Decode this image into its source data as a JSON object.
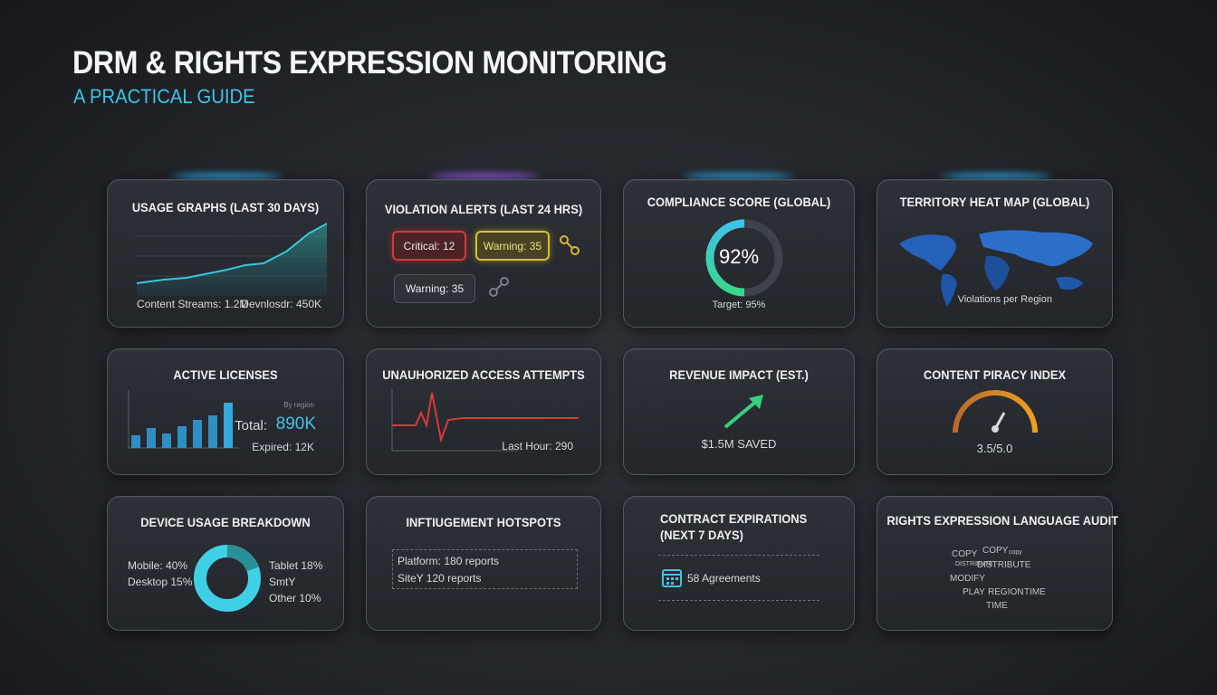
{
  "header": {
    "title": "DRM & RIGHTS EXPRESSION MONITORING",
    "subtitle": "A PRACTICAL GUIDE"
  },
  "cards": [
    {
      "title": "USAGE GRAPHS (LAST 30 DAYS)",
      "items": [
        "Content Streams: 1.2M",
        "Devnlosdr: 450K"
      ]
    },
    {
      "title": "VIOLATION ALERTS (LAST 24 HRS)",
      "items": [
        "Critical: 12",
        "Warning: 35",
        "Warning: 35"
      ]
    },
    {
      "title": "COMPLIANCE SCORE (GLOBAL)",
      "items": [
        "92%",
        "Target: 95%"
      ]
    },
    {
      "title": "TERRITORY HEAT MAP (GLOBAL)",
      "items": [
        "Violations per Region"
      ]
    },
    {
      "title": "ACTIVE LICENSES",
      "items": [
        "By region",
        "Total:",
        "890K",
        "Expired: 12K"
      ]
    },
    {
      "title": "UNAUHORIZED ACCESS ATTEMPTS",
      "items": [
        "Last Hour: 290"
      ]
    },
    {
      "title": "REVENUE IMPACT (EST.)",
      "items": [
        "$1.5M SAVED"
      ]
    },
    {
      "title": "CONTENT PIRACY INDEX",
      "items": [
        "3.5/5.0"
      ]
    },
    {
      "title": "DEVICE USAGE BREAKDOWN",
      "items": [
        "Mobile: 40%",
        "Desktop 15%",
        "Tablet 18%",
        "SmtY",
        "Other 10%"
      ]
    },
    {
      "title": "INFTIUGEMENT HOTSPOTS",
      "items": [
        "Platform: 180 reports",
        "SiteY 120 reports"
      ]
    },
    {
      "title": "CONTRACT EXPIRATIONS",
      "subtitle": "(NEXT 7 DAYS)",
      "items": [
        "58 Agreements"
      ]
    },
    {
      "title": "RIGHTS EXPRESSION LANGUAGE AUDIT",
      "items": [
        "COPY",
        "COPY",
        "copy",
        "DISTRIBUTE",
        "DISTRIBUTE",
        "MODIFY",
        "PLAY",
        "REGION",
        "TIME",
        "TIME"
      ]
    }
  ]
}
